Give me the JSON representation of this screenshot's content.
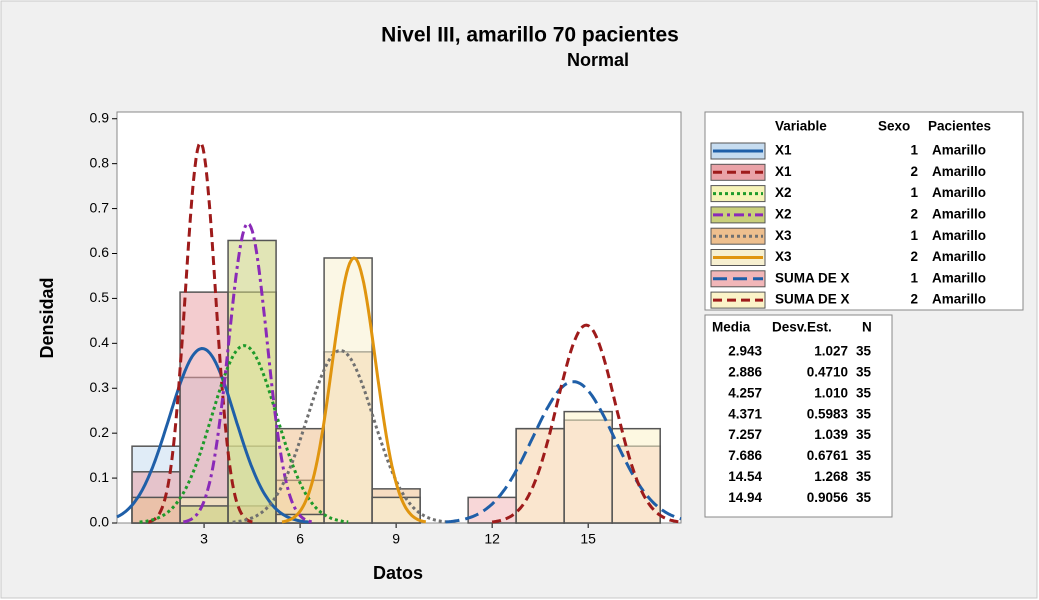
{
  "chart_data": {
    "type": "histogram",
    "title": "Nivel III, amarillo 70 pacientes",
    "subtitle": "Normal",
    "x_label": "Datos",
    "y_label": "Densidad",
    "bins": [
      0.75,
      2.25,
      3.75,
      5.25,
      6.75,
      8.25,
      9.75,
      11.25,
      12.75,
      14.25,
      15.75,
      17.25
    ],
    "xlim": [
      0.28,
      17.9
    ],
    "ylim": [
      0,
      0.915
    ],
    "xticks": [
      3,
      6,
      9,
      12,
      15
    ],
    "yticks": [
      {
        "value": 0,
        "label": "0.0"
      },
      0.1,
      0.2,
      0.3,
      0.4,
      0.5,
      0.6,
      0.7,
      0.8,
      0.9
    ],
    "legend_headers": [
      "Variable",
      "Sexo",
      "Pacientes"
    ],
    "stats_headers": [
      "Media",
      "Desv.Est.",
      "N"
    ],
    "series": [
      {
        "name": "X1",
        "sexo": 1,
        "pacientes": "Amarillo",
        "color": "#1f5fa8",
        "fill": "#c6dcf0",
        "line_style": "solid",
        "values": [
          0.171,
          0.324,
          0.171,
          0,
          0,
          0,
          0,
          0,
          0,
          0,
          0
        ],
        "stats": {
          "mean": 2.943,
          "sd": 1.027,
          "n": 35
        }
      },
      {
        "name": "X1",
        "sexo": 2,
        "pacientes": "Amarillo",
        "color": "#9e1b1b",
        "fill": "#eaa3a8",
        "line_style": "dashed",
        "values": [
          0.114,
          0.514,
          0.038,
          0,
          0,
          0,
          0,
          0,
          0,
          0,
          0
        ],
        "stats": {
          "mean": 2.886,
          "sd": {
            "value": 0.471,
            "label": "0.4710"
          },
          "n": 35
        }
      },
      {
        "name": "X2",
        "sexo": 1,
        "pacientes": "Amarillo",
        "color": "#1e9a2a",
        "fill": "#f6f3b8",
        "line_style": "dotted",
        "values": [
          0,
          0.057,
          0.514,
          0.095,
          0,
          0,
          0,
          0,
          0,
          0,
          0
        ],
        "stats": {
          "mean": 4.257,
          "sd": {
            "value": 1.01,
            "label": "1.010"
          },
          "n": 35
        }
      },
      {
        "name": "X2",
        "sexo": 2,
        "pacientes": "Amarillo",
        "color": "#8a2ab8",
        "fill": "#c9cf7a",
        "line_style": "dashdot",
        "values": [
          0,
          0.038,
          0.629,
          0,
          0,
          0,
          0,
          0,
          0,
          0,
          0
        ],
        "stats": {
          "mean": 4.371,
          "sd": 0.5983,
          "n": 35
        }
      },
      {
        "name": "X3",
        "sexo": 1,
        "pacientes": "Amarillo",
        "color": "#707070",
        "fill": "#eebf8e",
        "line_style": "dotted",
        "values": [
          0.057,
          0,
          0,
          0.21,
          0.381,
          0.076,
          0,
          0,
          0,
          0,
          0
        ],
        "stats": {
          "mean": 7.257,
          "sd": 1.039,
          "n": 35
        }
      },
      {
        "name": "X3",
        "sexo": 2,
        "pacientes": "Amarillo",
        "color": "#e0950f",
        "fill": "#f7f0d0",
        "line_style": "solid",
        "values": [
          0,
          0,
          0,
          0.019,
          0.59,
          0.057,
          0,
          0,
          0,
          0,
          0
        ],
        "stats": {
          "mean": 7.686,
          "sd": 0.6761,
          "n": 35
        }
      },
      {
        "name": "SUMA DE X",
        "sexo": 1,
        "pacientes": "Amarillo",
        "color": "#1f5fa8",
        "fill": "#f2b6b8",
        "line_style": "longdash",
        "values": [
          0,
          0,
          0,
          0,
          0,
          0,
          0,
          0.057,
          0.21,
          0.229,
          0.171
        ],
        "stats": {
          "mean": 14.54,
          "sd": 1.268,
          "n": 35
        }
      },
      {
        "name": "SUMA DE X",
        "sexo": 2,
        "pacientes": "Amarillo",
        "color": "#9e1b1b",
        "fill": "#fbf3c8",
        "line_style": "dashed",
        "values": [
          0,
          0,
          0,
          0,
          0,
          0,
          0,
          0,
          0.21,
          0.248,
          0.21
        ],
        "stats": {
          "mean": 14.94,
          "sd": 0.9056,
          "n": 35
        }
      }
    ]
  }
}
